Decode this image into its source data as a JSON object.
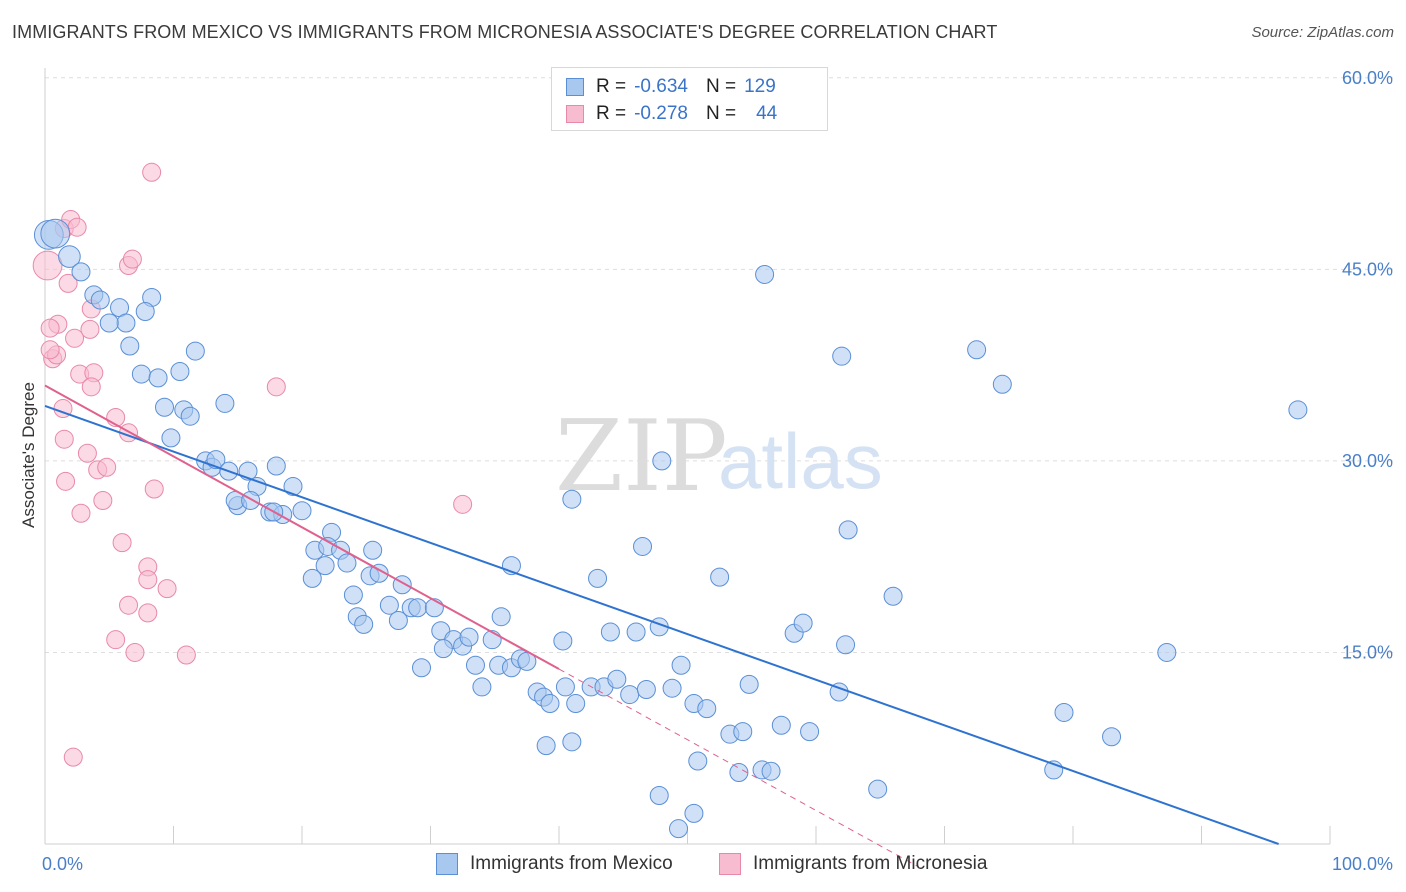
{
  "title": "IMMIGRANTS FROM MEXICO VS IMMIGRANTS FROM MICRONESIA ASSOCIATE'S DEGREE CORRELATION CHART",
  "source": "Source: ZipAtlas.com",
  "watermark": {
    "zip": "ZIP",
    "atlas": "atlas"
  },
  "legend": {
    "r_label": "R =",
    "n_label": "N =",
    "mexico": {
      "r": "-0.634",
      "n": "129"
    },
    "micronesia": {
      "r": "-0.278",
      "n": "44"
    }
  },
  "colors": {
    "mexico_fill": "#a9c8f0",
    "mexico_stroke": "#5a8fd6",
    "mexico_line": "#2f73d0",
    "micronesia_fill": "#f7bcd0",
    "micronesia_stroke": "#e889a8",
    "micronesia_line": "#e0608e",
    "axis_text": "#4a7fc8",
    "grid": "#dedede"
  },
  "chart_data": {
    "type": "scatter",
    "title": "IMMIGRANTS FROM MEXICO VS IMMIGRANTS FROM MICRONESIA ASSOCIATE'S DEGREE CORRELATION CHART",
    "xlabel": "",
    "ylabel": "Associate's Degree",
    "xlim": [
      0,
      100
    ],
    "ylim": [
      0,
      60
    ],
    "x_tick_labels": [
      "0.0%",
      "100.0%"
    ],
    "y_ticks": [
      15,
      30,
      45,
      60
    ],
    "y_tick_labels": [
      "15.0%",
      "30.0%",
      "45.0%",
      "60.0%"
    ],
    "grid": "horizontal dashed",
    "legend_position": "top-center",
    "series": [
      {
        "name": "Immigrants from Mexico",
        "trend": {
          "x": [
            0,
            96
          ],
          "y": [
            34.3,
            0
          ]
        },
        "points": [
          [
            0.3,
            47.7,
            1.6
          ],
          [
            0.8,
            47.8,
            1.6
          ],
          [
            1.9,
            46.0,
            1.2
          ],
          [
            2.8,
            44.8,
            1
          ],
          [
            3.8,
            43.0,
            1
          ],
          [
            4.3,
            42.6,
            1
          ],
          [
            5.8,
            42.0,
            1
          ],
          [
            8.3,
            42.8,
            1
          ],
          [
            7.8,
            41.7,
            1
          ],
          [
            6.3,
            40.8,
            1
          ],
          [
            5.0,
            40.8,
            1
          ],
          [
            6.6,
            39.0,
            1
          ],
          [
            11.7,
            38.6,
            1
          ],
          [
            7.5,
            36.8,
            1
          ],
          [
            8.8,
            36.5,
            1
          ],
          [
            10.5,
            37.0,
            1
          ],
          [
            14.0,
            34.5,
            1
          ],
          [
            9.3,
            34.2,
            1
          ],
          [
            10.8,
            34.0,
            1
          ],
          [
            11.3,
            33.5,
            1
          ],
          [
            9.8,
            31.8,
            1
          ],
          [
            12.5,
            30.0,
            1
          ],
          [
            13.0,
            29.5,
            1
          ],
          [
            13.3,
            30.1,
            1
          ],
          [
            14.3,
            29.2,
            1
          ],
          [
            15.8,
            29.2,
            1
          ],
          [
            18.0,
            29.6,
            1
          ],
          [
            16.5,
            28.0,
            1
          ],
          [
            15.0,
            26.5,
            1
          ],
          [
            14.8,
            26.9,
            1
          ],
          [
            16.0,
            26.9,
            1
          ],
          [
            17.5,
            26.0,
            1
          ],
          [
            18.5,
            25.8,
            1
          ],
          [
            19.3,
            28.0,
            1
          ],
          [
            20.0,
            26.1,
            1
          ],
          [
            17.8,
            26.0,
            1
          ],
          [
            22.3,
            24.4,
            1
          ],
          [
            21.0,
            23.0,
            1
          ],
          [
            22.0,
            23.3,
            1
          ],
          [
            23.0,
            23.0,
            1
          ],
          [
            25.5,
            23.0,
            1
          ],
          [
            21.8,
            21.8,
            1
          ],
          [
            23.5,
            22.0,
            1
          ],
          [
            20.8,
            20.8,
            1
          ],
          [
            25.3,
            21.0,
            1
          ],
          [
            26.0,
            21.2,
            1
          ],
          [
            27.8,
            20.3,
            1
          ],
          [
            24.0,
            19.5,
            1
          ],
          [
            26.8,
            18.7,
            1
          ],
          [
            28.5,
            18.5,
            1
          ],
          [
            29.0,
            18.5,
            1
          ],
          [
            30.3,
            18.5,
            1
          ],
          [
            24.3,
            17.8,
            1
          ],
          [
            24.8,
            17.2,
            1
          ],
          [
            27.5,
            17.5,
            1
          ],
          [
            30.8,
            16.7,
            1
          ],
          [
            31.8,
            16.0,
            1
          ],
          [
            32.5,
            15.5,
            1
          ],
          [
            33.0,
            16.2,
            1
          ],
          [
            34.8,
            16.0,
            1
          ],
          [
            31.0,
            15.3,
            1
          ],
          [
            29.3,
            13.8,
            1
          ],
          [
            33.5,
            14.0,
            1
          ],
          [
            35.3,
            14.0,
            1
          ],
          [
            36.3,
            13.8,
            1
          ],
          [
            37.0,
            14.5,
            1
          ],
          [
            37.5,
            14.3,
            1
          ],
          [
            34.0,
            12.3,
            1
          ],
          [
            38.3,
            11.9,
            1
          ],
          [
            38.8,
            11.5,
            1
          ],
          [
            39.3,
            11.0,
            1
          ],
          [
            41.3,
            11.0,
            1
          ],
          [
            40.5,
            12.3,
            1
          ],
          [
            42.5,
            12.3,
            1
          ],
          [
            43.5,
            12.3,
            1
          ],
          [
            44.5,
            12.9,
            1
          ],
          [
            45.5,
            11.7,
            1
          ],
          [
            46.8,
            12.1,
            1
          ],
          [
            48.8,
            12.2,
            1
          ],
          [
            39.0,
            7.7,
            1
          ],
          [
            41.0,
            8.0,
            1
          ],
          [
            36.3,
            21.8,
            1
          ],
          [
            35.5,
            17.8,
            1
          ],
          [
            40.3,
            15.9,
            1
          ],
          [
            41.0,
            27.0,
            1
          ],
          [
            43.0,
            20.8,
            1
          ],
          [
            44.0,
            16.6,
            1
          ],
          [
            46.0,
            16.6,
            1
          ],
          [
            46.5,
            23.3,
            1
          ],
          [
            47.8,
            17.0,
            1
          ],
          [
            48.0,
            30.0,
            1
          ],
          [
            49.5,
            14.0,
            1
          ],
          [
            50.5,
            11.0,
            1
          ],
          [
            50.8,
            6.5,
            1
          ],
          [
            51.5,
            10.6,
            1
          ],
          [
            52.5,
            20.9,
            1
          ],
          [
            53.3,
            8.6,
            1
          ],
          [
            54.0,
            5.6,
            1
          ],
          [
            54.3,
            8.8,
            1
          ],
          [
            54.8,
            12.5,
            1
          ],
          [
            55.8,
            5.8,
            1
          ],
          [
            56.5,
            5.7,
            1
          ],
          [
            57.3,
            9.3,
            1
          ],
          [
            58.3,
            16.5,
            1
          ],
          [
            59.0,
            17.3,
            1
          ],
          [
            59.5,
            8.8,
            1
          ],
          [
            61.8,
            11.9,
            1
          ],
          [
            62.3,
            15.6,
            1
          ],
          [
            62.5,
            24.6,
            1
          ],
          [
            47.8,
            3.8,
            1
          ],
          [
            49.3,
            1.2,
            1
          ],
          [
            50.5,
            2.4,
            1
          ],
          [
            64.8,
            4.3,
            1
          ],
          [
            66.0,
            19.4,
            1
          ],
          [
            56.0,
            44.6,
            1
          ],
          [
            62.0,
            38.2,
            1
          ],
          [
            72.5,
            38.7,
            1
          ],
          [
            74.5,
            36.0,
            1
          ],
          [
            78.5,
            5.8,
            1
          ],
          [
            79.3,
            10.3,
            1
          ],
          [
            83.0,
            8.4,
            1
          ],
          [
            87.3,
            15.0,
            1
          ],
          [
            97.5,
            34.0,
            1
          ]
        ]
      },
      {
        "name": "Immigrants from Micronesia",
        "trend_solid": {
          "x": [
            0,
            40
          ],
          "y": [
            35.9,
            13.7
          ]
        },
        "trend_dashed": {
          "x": [
            40,
            68
          ],
          "y": [
            13.7,
            -1.8
          ]
        },
        "points": [
          [
            0.2,
            45.3,
            1.6
          ],
          [
            1.5,
            48.2,
            1
          ],
          [
            2.0,
            48.9,
            1
          ],
          [
            2.5,
            48.3,
            1
          ],
          [
            8.3,
            52.6,
            1
          ],
          [
            6.5,
            45.3,
            1
          ],
          [
            6.8,
            45.8,
            1
          ],
          [
            1.0,
            40.7,
            1
          ],
          [
            0.4,
            40.4,
            1
          ],
          [
            1.8,
            43.9,
            1
          ],
          [
            3.6,
            41.9,
            1
          ],
          [
            3.5,
            40.3,
            1
          ],
          [
            2.3,
            39.6,
            1
          ],
          [
            0.6,
            38.0,
            1
          ],
          [
            0.9,
            38.3,
            1
          ],
          [
            0.4,
            38.7,
            1
          ],
          [
            2.7,
            36.8,
            1
          ],
          [
            3.8,
            36.9,
            1
          ],
          [
            3.6,
            35.8,
            1
          ],
          [
            1.4,
            34.1,
            1
          ],
          [
            5.5,
            33.4,
            1
          ],
          [
            18.0,
            35.8,
            1
          ],
          [
            6.5,
            32.2,
            1
          ],
          [
            1.5,
            31.7,
            1
          ],
          [
            3.3,
            30.6,
            1
          ],
          [
            4.1,
            29.3,
            1
          ],
          [
            4.8,
            29.5,
            1
          ],
          [
            1.6,
            28.4,
            1
          ],
          [
            8.5,
            27.8,
            1
          ],
          [
            4.5,
            26.9,
            1
          ],
          [
            2.8,
            25.9,
            1
          ],
          [
            32.5,
            26.6,
            1
          ],
          [
            6.0,
            23.6,
            1
          ],
          [
            8.0,
            21.7,
            1
          ],
          [
            8.0,
            20.7,
            1
          ],
          [
            9.5,
            20.0,
            1
          ],
          [
            6.5,
            18.7,
            1
          ],
          [
            8.0,
            18.1,
            1
          ],
          [
            5.5,
            16.0,
            1
          ],
          [
            7.0,
            15.0,
            1
          ],
          [
            11.0,
            14.8,
            1
          ],
          [
            2.2,
            6.8,
            1
          ]
        ]
      }
    ]
  },
  "bottom_legend": {
    "mexico": "Immigrants from Mexico",
    "micronesia": "Immigrants from Micronesia"
  }
}
